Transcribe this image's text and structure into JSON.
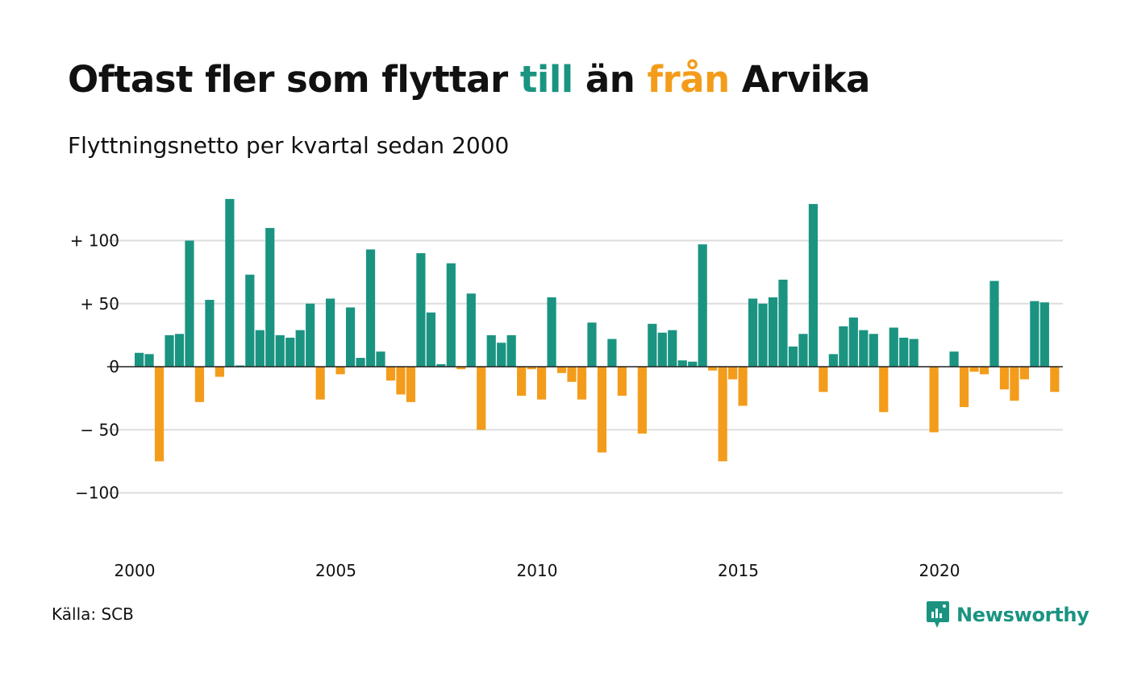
{
  "title": {
    "part1": "Oftast fler som flyttar ",
    "highlight_pos": "till",
    "part2": " än ",
    "highlight_neg": "från",
    "part3": " Arvika"
  },
  "subtitle": "Flyttningsnetto per kvartal sedan 2000",
  "source": "Källa: SCB",
  "brand": "Newsworthy",
  "colors": {
    "positive": "#1a9481",
    "negative": "#f39c1b",
    "grid": "#dddddd",
    "zero_line": "#222222"
  },
  "chart_data": {
    "type": "bar",
    "ylim": [
      -135,
      135
    ],
    "y_ticks": [
      {
        "value": 100,
        "label": "+ 100"
      },
      {
        "value": 50,
        "label": "+  50"
      },
      {
        "value": 0,
        "label": "0"
      },
      {
        "value": -50,
        "label": "− 50"
      },
      {
        "value": -100,
        "label": "−100"
      }
    ],
    "x_ticks": [
      {
        "value": 2000,
        "label": "2000"
      },
      {
        "value": 2005,
        "label": "2005"
      },
      {
        "value": 2010,
        "label": "2010"
      },
      {
        "value": 2015,
        "label": "2015"
      },
      {
        "value": 2020,
        "label": "2020"
      }
    ],
    "start_year": 2000,
    "values": [
      11,
      10,
      -75,
      25,
      26,
      100,
      -28,
      53,
      -8,
      133,
      1,
      73,
      29,
      110,
      25,
      23,
      29,
      50,
      -26,
      54,
      -6,
      47,
      7,
      93,
      12,
      -11,
      -22,
      -28,
      90,
      43,
      2,
      82,
      -2,
      58,
      -50,
      25,
      19,
      25,
      -23,
      -2,
      -26,
      55,
      -5,
      -12,
      -26,
      35,
      -68,
      22,
      -23,
      0,
      -53,
      34,
      27,
      29,
      5,
      4,
      97,
      -3,
      -75,
      -10,
      -31,
      54,
      50,
      55,
      69,
      16,
      26,
      129,
      -20,
      10,
      32,
      39,
      29,
      26,
      -36,
      31,
      23,
      22,
      0,
      -52,
      0,
      12,
      -32,
      -4,
      -6,
      68,
      -18,
      -27,
      -10,
      52,
      51,
      -20
    ]
  }
}
